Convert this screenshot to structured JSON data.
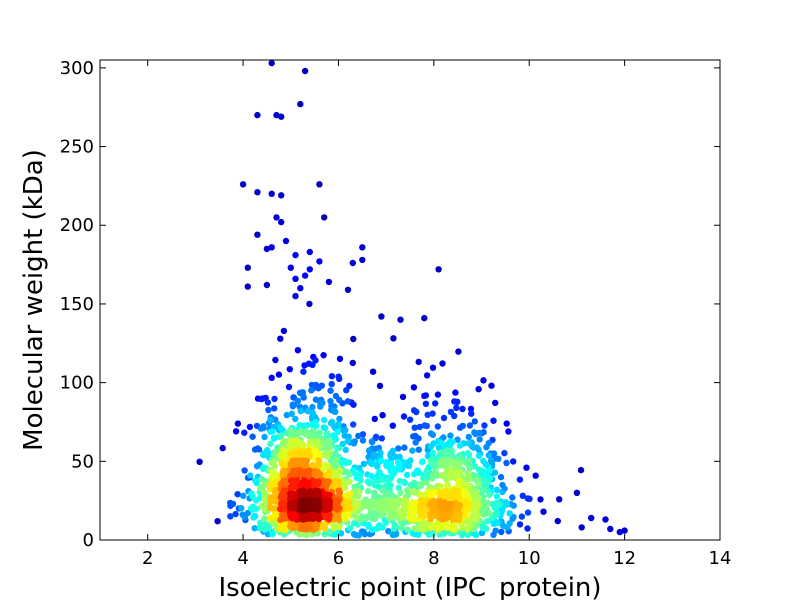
{
  "chart_data": {
    "type": "scatter",
    "title": "",
    "xlabel": "Isoelectric point (IPC_protein)",
    "ylabel": "Molecular weight (kDa)",
    "xlim": [
      1,
      14
    ],
    "ylim": [
      0,
      305
    ],
    "xticks": [
      2,
      4,
      6,
      8,
      10,
      12,
      14
    ],
    "yticks": [
      0,
      50,
      100,
      150,
      200,
      250,
      300
    ],
    "grid": false,
    "legend": "none",
    "color_encoding": "point density (blue = low, red = high)",
    "colormap": [
      "#00008f",
      "#0000ff",
      "#0080ff",
      "#00ffff",
      "#80ff80",
      "#ffff00",
      "#ff8000",
      "#ff0000",
      "#800000"
    ],
    "clusters": [
      {
        "center_x": 5.3,
        "center_y": 28,
        "spread_x": 0.55,
        "spread_y": 16,
        "count": 1400
      },
      {
        "center_x": 8.3,
        "center_y": 24,
        "spread_x": 0.65,
        "spread_y": 14,
        "count": 850
      },
      {
        "center_x": 6.9,
        "center_y": 28,
        "spread_x": 0.4,
        "spread_y": 14,
        "count": 180
      }
    ],
    "outliers": [
      [
        4.6,
        303
      ],
      [
        5.3,
        298
      ],
      [
        5.2,
        277
      ],
      [
        4.3,
        270
      ],
      [
        4.7,
        270
      ],
      [
        4.8,
        269
      ],
      [
        4.0,
        226
      ],
      [
        5.6,
        226
      ],
      [
        4.3,
        221
      ],
      [
        4.6,
        220
      ],
      [
        4.8,
        219
      ],
      [
        4.7,
        205
      ],
      [
        5.7,
        205
      ],
      [
        4.8,
        202
      ],
      [
        4.3,
        194
      ],
      [
        4.9,
        190
      ],
      [
        6.5,
        186
      ],
      [
        4.6,
        186
      ],
      [
        4.5,
        185
      ],
      [
        5.4,
        183
      ],
      [
        5.1,
        181
      ],
      [
        5.6,
        177
      ],
      [
        6.3,
        176
      ],
      [
        4.1,
        173
      ],
      [
        5.0,
        173
      ],
      [
        6.5,
        178
      ],
      [
        5.4,
        172
      ],
      [
        8.1,
        172
      ],
      [
        5.3,
        168
      ],
      [
        5.1,
        166
      ],
      [
        5.8,
        164
      ],
      [
        4.5,
        162
      ],
      [
        5.2,
        160
      ],
      [
        4.1,
        161
      ],
      [
        6.2,
        159
      ],
      [
        5.1,
        155
      ],
      [
        7.8,
        141
      ],
      [
        6.9,
        142
      ],
      [
        7.3,
        140
      ],
      [
        11.0,
        30
      ],
      [
        11.3,
        14
      ],
      [
        11.6,
        13
      ],
      [
        11.7,
        7
      ],
      [
        11.9,
        5
      ],
      [
        12.0,
        6
      ],
      [
        11.1,
        8
      ],
      [
        10.3,
        18
      ],
      [
        10.6,
        12
      ]
    ]
  }
}
